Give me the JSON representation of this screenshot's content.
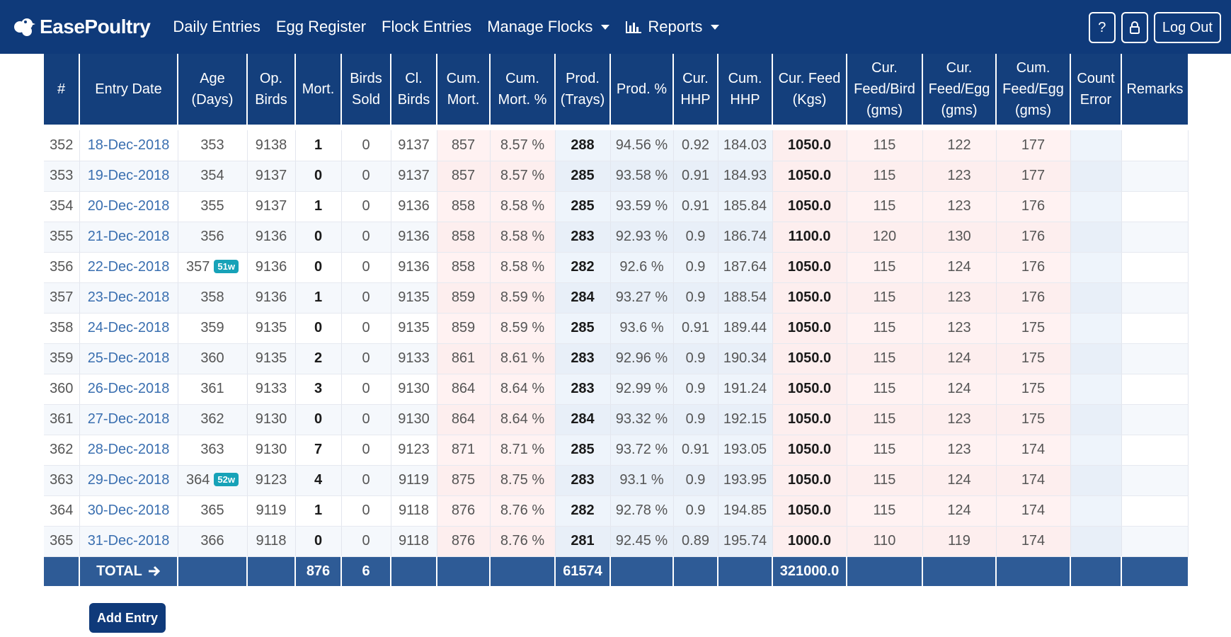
{
  "nav": {
    "brand": "EasePoultry",
    "links": {
      "daily_entries": "Daily Entries",
      "egg_register": "Egg Register",
      "flock_entries": "Flock Entries",
      "manage_flocks": "Manage Flocks",
      "reports": "Reports"
    },
    "help_label": "?",
    "logout_label": "Log Out"
  },
  "table": {
    "headers": [
      [
        "#"
      ],
      [
        "Entry Date"
      ],
      [
        "Age",
        "(Days)"
      ],
      [
        "Op.",
        "Birds"
      ],
      [
        "Mort."
      ],
      [
        "Birds",
        "Sold"
      ],
      [
        "Cl.",
        "Birds"
      ],
      [
        "Cum.",
        "Mort."
      ],
      [
        "Cum.",
        "Mort. %"
      ],
      [
        "Prod.",
        "(Trays)"
      ],
      [
        "Prod. %"
      ],
      [
        "Cur.",
        "HHP"
      ],
      [
        "Cum.",
        "HHP"
      ],
      [
        "Cur. Feed",
        "(Kgs)"
      ],
      [
        "Cur.",
        "Feed/Bird",
        "(gms)"
      ],
      [
        "Cur.",
        "Feed/Egg",
        "(gms)"
      ],
      [
        "Cum.",
        "Feed/Egg",
        "(gms)"
      ],
      [
        "Count",
        "Error"
      ],
      [
        "Remarks"
      ]
    ],
    "rows": [
      {
        "num": "352",
        "date": "18-Dec-2018",
        "age": "353",
        "badge": "",
        "op": "9138",
        "mort": "1",
        "sold": "0",
        "cl": "9137",
        "cum_mort": "857",
        "cum_mort_pct": "8.57 %",
        "prod": "288",
        "prod_pct": "94.56 %",
        "cur_hhp": "0.92",
        "cum_hhp": "184.03",
        "feed": "1050.0",
        "feed_bird": "115",
        "feed_egg": "122",
        "cum_feed_egg": "177",
        "count_error": "",
        "remarks": ""
      },
      {
        "num": "353",
        "date": "19-Dec-2018",
        "age": "354",
        "badge": "",
        "op": "9137",
        "mort": "0",
        "sold": "0",
        "cl": "9137",
        "cum_mort": "857",
        "cum_mort_pct": "8.57 %",
        "prod": "285",
        "prod_pct": "93.58 %",
        "cur_hhp": "0.91",
        "cum_hhp": "184.93",
        "feed": "1050.0",
        "feed_bird": "115",
        "feed_egg": "123",
        "cum_feed_egg": "177",
        "count_error": "",
        "remarks": ""
      },
      {
        "num": "354",
        "date": "20-Dec-2018",
        "age": "355",
        "badge": "",
        "op": "9137",
        "mort": "1",
        "sold": "0",
        "cl": "9136",
        "cum_mort": "858",
        "cum_mort_pct": "8.58 %",
        "prod": "285",
        "prod_pct": "93.59 %",
        "cur_hhp": "0.91",
        "cum_hhp": "185.84",
        "feed": "1050.0",
        "feed_bird": "115",
        "feed_egg": "123",
        "cum_feed_egg": "176",
        "count_error": "",
        "remarks": ""
      },
      {
        "num": "355",
        "date": "21-Dec-2018",
        "age": "356",
        "badge": "",
        "op": "9136",
        "mort": "0",
        "sold": "0",
        "cl": "9136",
        "cum_mort": "858",
        "cum_mort_pct": "8.58 %",
        "prod": "283",
        "prod_pct": "92.93 %",
        "cur_hhp": "0.9",
        "cum_hhp": "186.74",
        "feed": "1100.0",
        "feed_bird": "120",
        "feed_egg": "130",
        "cum_feed_egg": "176",
        "count_error": "",
        "remarks": ""
      },
      {
        "num": "356",
        "date": "22-Dec-2018",
        "age": "357",
        "badge": "51w",
        "op": "9136",
        "mort": "0",
        "sold": "0",
        "cl": "9136",
        "cum_mort": "858",
        "cum_mort_pct": "8.58 %",
        "prod": "282",
        "prod_pct": "92.6 %",
        "cur_hhp": "0.9",
        "cum_hhp": "187.64",
        "feed": "1050.0",
        "feed_bird": "115",
        "feed_egg": "124",
        "cum_feed_egg": "176",
        "count_error": "",
        "remarks": ""
      },
      {
        "num": "357",
        "date": "23-Dec-2018",
        "age": "358",
        "badge": "",
        "op": "9136",
        "mort": "1",
        "sold": "0",
        "cl": "9135",
        "cum_mort": "859",
        "cum_mort_pct": "8.59 %",
        "prod": "284",
        "prod_pct": "93.27 %",
        "cur_hhp": "0.9",
        "cum_hhp": "188.54",
        "feed": "1050.0",
        "feed_bird": "115",
        "feed_egg": "123",
        "cum_feed_egg": "176",
        "count_error": "",
        "remarks": ""
      },
      {
        "num": "358",
        "date": "24-Dec-2018",
        "age": "359",
        "badge": "",
        "op": "9135",
        "mort": "0",
        "sold": "0",
        "cl": "9135",
        "cum_mort": "859",
        "cum_mort_pct": "8.59 %",
        "prod": "285",
        "prod_pct": "93.6 %",
        "cur_hhp": "0.91",
        "cum_hhp": "189.44",
        "feed": "1050.0",
        "feed_bird": "115",
        "feed_egg": "123",
        "cum_feed_egg": "175",
        "count_error": "",
        "remarks": ""
      },
      {
        "num": "359",
        "date": "25-Dec-2018",
        "age": "360",
        "badge": "",
        "op": "9135",
        "mort": "2",
        "sold": "0",
        "cl": "9133",
        "cum_mort": "861",
        "cum_mort_pct": "8.61 %",
        "prod": "283",
        "prod_pct": "92.96 %",
        "cur_hhp": "0.9",
        "cum_hhp": "190.34",
        "feed": "1050.0",
        "feed_bird": "115",
        "feed_egg": "124",
        "cum_feed_egg": "175",
        "count_error": "",
        "remarks": ""
      },
      {
        "num": "360",
        "date": "26-Dec-2018",
        "age": "361",
        "badge": "",
        "op": "9133",
        "mort": "3",
        "sold": "0",
        "cl": "9130",
        "cum_mort": "864",
        "cum_mort_pct": "8.64 %",
        "prod": "283",
        "prod_pct": "92.99 %",
        "cur_hhp": "0.9",
        "cum_hhp": "191.24",
        "feed": "1050.0",
        "feed_bird": "115",
        "feed_egg": "124",
        "cum_feed_egg": "175",
        "count_error": "",
        "remarks": ""
      },
      {
        "num": "361",
        "date": "27-Dec-2018",
        "age": "362",
        "badge": "",
        "op": "9130",
        "mort": "0",
        "sold": "0",
        "cl": "9130",
        "cum_mort": "864",
        "cum_mort_pct": "8.64 %",
        "prod": "284",
        "prod_pct": "93.32 %",
        "cur_hhp": "0.9",
        "cum_hhp": "192.15",
        "feed": "1050.0",
        "feed_bird": "115",
        "feed_egg": "123",
        "cum_feed_egg": "175",
        "count_error": "",
        "remarks": ""
      },
      {
        "num": "362",
        "date": "28-Dec-2018",
        "age": "363",
        "badge": "",
        "op": "9130",
        "mort": "7",
        "sold": "0",
        "cl": "9123",
        "cum_mort": "871",
        "cum_mort_pct": "8.71 %",
        "prod": "285",
        "prod_pct": "93.72 %",
        "cur_hhp": "0.91",
        "cum_hhp": "193.05",
        "feed": "1050.0",
        "feed_bird": "115",
        "feed_egg": "123",
        "cum_feed_egg": "174",
        "count_error": "",
        "remarks": ""
      },
      {
        "num": "363",
        "date": "29-Dec-2018",
        "age": "364",
        "badge": "52w",
        "op": "9123",
        "mort": "4",
        "sold": "0",
        "cl": "9119",
        "cum_mort": "875",
        "cum_mort_pct": "8.75 %",
        "prod": "283",
        "prod_pct": "93.1 %",
        "cur_hhp": "0.9",
        "cum_hhp": "193.95",
        "feed": "1050.0",
        "feed_bird": "115",
        "feed_egg": "124",
        "cum_feed_egg": "174",
        "count_error": "",
        "remarks": ""
      },
      {
        "num": "364",
        "date": "30-Dec-2018",
        "age": "365",
        "badge": "",
        "op": "9119",
        "mort": "1",
        "sold": "0",
        "cl": "9118",
        "cum_mort": "876",
        "cum_mort_pct": "8.76 %",
        "prod": "282",
        "prod_pct": "92.78 %",
        "cur_hhp": "0.9",
        "cum_hhp": "194.85",
        "feed": "1050.0",
        "feed_bird": "115",
        "feed_egg": "124",
        "cum_feed_egg": "174",
        "count_error": "",
        "remarks": ""
      },
      {
        "num": "365",
        "date": "31-Dec-2018",
        "age": "366",
        "badge": "",
        "op": "9118",
        "mort": "0",
        "sold": "0",
        "cl": "9118",
        "cum_mort": "876",
        "cum_mort_pct": "8.76 %",
        "prod": "281",
        "prod_pct": "92.45 %",
        "cur_hhp": "0.89",
        "cum_hhp": "195.74",
        "feed": "1000.0",
        "feed_bird": "110",
        "feed_egg": "119",
        "cum_feed_egg": "174",
        "count_error": "",
        "remarks": ""
      }
    ],
    "totals": {
      "label": "TOTAL",
      "mort": "876",
      "sold": "6",
      "prod": "61574",
      "feed": "321000.0"
    }
  },
  "add_entry_label": "Add Entry",
  "colors": {
    "navbar": "#0f3a7a",
    "header": "#143f7c",
    "footer": "#2e5b96",
    "badge": "#17a2b8",
    "date_link": "#3a6fb0"
  }
}
